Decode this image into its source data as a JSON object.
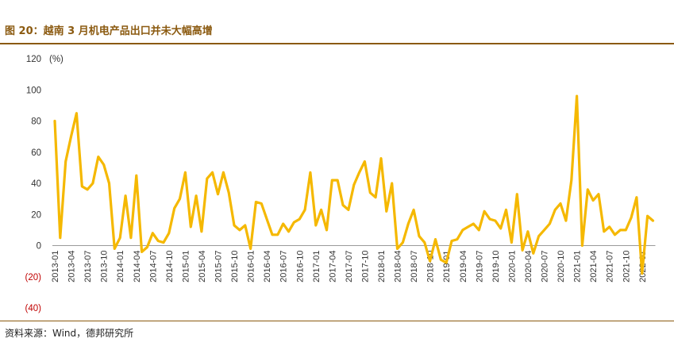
{
  "header": {
    "title": "图 20：越南 3 月机电产品出口并未大幅高增"
  },
  "footer": {
    "source": "资料来源：Wind，德邦研究所"
  },
  "chart_data": {
    "type": "line",
    "ylabel": "(%)",
    "ylim": [
      -40,
      120
    ],
    "yticks": [
      120,
      100,
      80,
      60,
      40,
      20,
      0,
      -20,
      -40
    ],
    "ytick_labels": [
      "120",
      "100",
      "80",
      "60",
      "40",
      "20",
      "0",
      "(20)",
      "(40)"
    ],
    "xtick_labels": [
      "2013-01",
      "2013-04",
      "2013-07",
      "2013-10",
      "2014-01",
      "2014-04",
      "2014-07",
      "2014-10",
      "2015-01",
      "2015-04",
      "2015-07",
      "2015-10",
      "2016-01",
      "2016-04",
      "2016-07",
      "2016-10",
      "2017-01",
      "2017-04",
      "2017-07",
      "2017-10",
      "2018-01",
      "2018-04",
      "2018-07",
      "2018-10",
      "2019-01",
      "2019-04",
      "2019-07",
      "2019-10",
      "2020-01",
      "2020-04",
      "2020-07",
      "2020-10",
      "2021-01",
      "2021-04",
      "2021-07",
      "2021-10",
      "2022-01"
    ],
    "grid": false,
    "series": [
      {
        "name": "",
        "color": "#f5b800",
        "start": "2013-01",
        "values": [
          80,
          5,
          54,
          70,
          85,
          38,
          36,
          40,
          57,
          52,
          40,
          -2,
          5,
          32,
          5,
          45,
          -4,
          -1,
          8,
          3,
          2,
          8,
          24,
          30,
          47,
          12,
          32,
          9,
          43,
          47,
          33,
          47,
          34,
          13,
          10,
          13,
          -2,
          28,
          27,
          17,
          7,
          7,
          14,
          9,
          15,
          17,
          23,
          47,
          13,
          23,
          10,
          42,
          42,
          26,
          23,
          39,
          47,
          54,
          34,
          31,
          56,
          22,
          40,
          -2,
          2,
          14,
          23,
          6,
          2,
          -10,
          4,
          -9,
          -11,
          3,
          4,
          10,
          12,
          14,
          10,
          22,
          17,
          16,
          11,
          23,
          2,
          33,
          -3,
          9,
          -5,
          6,
          10,
          14,
          23,
          27,
          16,
          42,
          96,
          0,
          36,
          29,
          33,
          9,
          12,
          7,
          10,
          10,
          18,
          31,
          -18,
          19,
          16
        ]
      }
    ]
  }
}
